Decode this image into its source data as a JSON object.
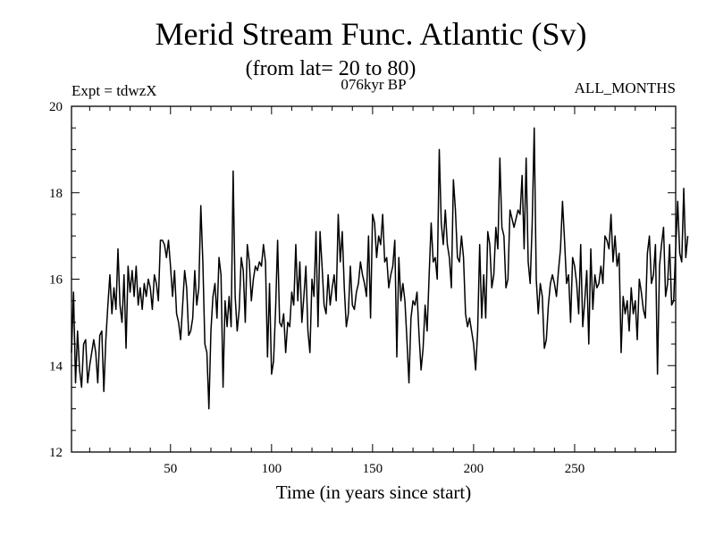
{
  "chart_data": {
    "type": "line",
    "title": "Merid Stream Func. Atlantic (Sv)",
    "subtitle": "(from lat= 20 to 80)",
    "experiment": "Expt = tdwzX",
    "period": "076kyr BP",
    "months": "ALL_MONTHS",
    "xlabel": "Time (in years since start)",
    "ylabel": "",
    "xlim": [
      1,
      300
    ],
    "ylim": [
      12,
      20
    ],
    "xticks": [
      50,
      100,
      150,
      200,
      250
    ],
    "yticks": [
      12,
      14,
      16,
      18,
      20
    ],
    "series": [
      {
        "name": "Merid Stream Func. Atlantic",
        "color": "#000000",
        "x_start": 1,
        "x_step": 1,
        "values": [
          14.3,
          15.7,
          13.6,
          14.8,
          13.9,
          13.5,
          14.5,
          14.6,
          13.6,
          14.0,
          14.3,
          14.6,
          14.3,
          13.6,
          14.7,
          14.8,
          13.4,
          14.6,
          15.4,
          16.1,
          15.2,
          15.8,
          15.3,
          16.7,
          15.4,
          15.0,
          16.1,
          14.4,
          16.3,
          15.7,
          16.2,
          15.6,
          16.3,
          15.4,
          15.8,
          15.3,
          15.9,
          15.6,
          16.0,
          15.8,
          15.3,
          16.1,
          15.9,
          15.5,
          16.9,
          16.9,
          16.8,
          16.5,
          16.9,
          16.3,
          15.6,
          16.2,
          15.2,
          15.0,
          14.6,
          15.4,
          16.2,
          15.8,
          14.7,
          14.8,
          15.1,
          16.2,
          15.4,
          15.8,
          17.7,
          16.4,
          14.5,
          14.3,
          13.0,
          14.8,
          15.6,
          15.9,
          15.1,
          16.5,
          16.1,
          13.5,
          15.5,
          14.9,
          15.6,
          14.9,
          18.5,
          15.6,
          14.8,
          15.3,
          16.5,
          16.2,
          15.0,
          16.8,
          16.4,
          15.5,
          16.0,
          16.3,
          16.2,
          16.4,
          16.3,
          16.8,
          16.4,
          14.2,
          15.9,
          13.8,
          14.1,
          15.3,
          16.9,
          15.0,
          14.9,
          15.2,
          14.3,
          15.0,
          14.9,
          15.7,
          15.4,
          16.8,
          15.5,
          16.4,
          15.0,
          15.6,
          16.3,
          14.8,
          14.3,
          16.0,
          15.6,
          17.1,
          14.9,
          17.1,
          16.3,
          15.4,
          15.2,
          16.1,
          15.4,
          15.8,
          16.1,
          15.5,
          17.5,
          16.4,
          17.1,
          15.8,
          14.9,
          15.2,
          16.3,
          15.4,
          15.3,
          15.7,
          15.9,
          16.4,
          16.1,
          15.9,
          15.6,
          17.0,
          15.1,
          17.5,
          17.3,
          16.5,
          17.0,
          16.8,
          17.5,
          16.4,
          16.5,
          15.8,
          16.1,
          16.3,
          16.9,
          14.2,
          16.5,
          15.5,
          15.9,
          15.5,
          14.6,
          13.6,
          15.1,
          15.5,
          15.4,
          15.7,
          14.7,
          13.9,
          14.4,
          15.4,
          14.8,
          16.1,
          17.3,
          16.4,
          16.5,
          16.0,
          19.0,
          17.3,
          16.8,
          17.6,
          16.8,
          16.5,
          15.8,
          18.3,
          17.6,
          16.5,
          16.4,
          17.0,
          16.5,
          15.2,
          14.9,
          15.1,
          14.8,
          14.5,
          13.9,
          14.8,
          16.8,
          15.1,
          16.1,
          15.1,
          17.1,
          16.8,
          15.8,
          16.1,
          17.2,
          16.7,
          18.8,
          17.2,
          17.0,
          15.8,
          16.0,
          17.6,
          17.4,
          17.2,
          17.4,
          17.6,
          17.5,
          18.4,
          16.7,
          18.8,
          16.4,
          15.9,
          17.3,
          19.5,
          16.0,
          15.2,
          15.9,
          15.6,
          14.4,
          14.6,
          15.4,
          15.9,
          16.1,
          15.9,
          15.6,
          16.2,
          16.7,
          17.8,
          16.9,
          15.9,
          16.1,
          15.0,
          16.5,
          16.3,
          15.9,
          15.2,
          16.8,
          14.9,
          15.5,
          16.2,
          14.5,
          16.7,
          15.3,
          16.1,
          15.8,
          15.9,
          16.3,
          15.9,
          17.0,
          16.9,
          16.7,
          17.5,
          16.4,
          17.0,
          16.3,
          16.6,
          14.3,
          15.6,
          15.2,
          15.5,
          14.8,
          15.8,
          15.2,
          15.5,
          14.6,
          16.0,
          15.7,
          15.3,
          15.1,
          16.6,
          17.0,
          15.9,
          16.1,
          16.8,
          13.8,
          16.3,
          16.8,
          17.2,
          15.6,
          15.9,
          16.8,
          15.4,
          15.5,
          16.7,
          17.8,
          16.6,
          16.4,
          18.1,
          16.5,
          17.0
        ]
      }
    ]
  }
}
